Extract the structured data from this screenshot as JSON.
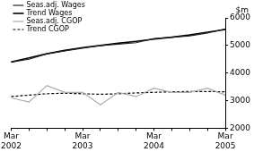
{
  "chart_data": {
    "type": "line",
    "ylabel": "$m",
    "categories": [
      "Mar 2002",
      null,
      null,
      null,
      "Mar 2003",
      null,
      null,
      null,
      "Mar 2004",
      null,
      null,
      null,
      "Mar 2005"
    ],
    "series": [
      {
        "name": "Seas.adj. Wages",
        "color": "#222222",
        "line_style": "solid",
        "values": [
          4400,
          4500,
          4700,
          4800,
          4900,
          5000,
          5050,
          5100,
          5250,
          5300,
          5350,
          5450,
          5600
        ]
      },
      {
        "name": "Trend Wages",
        "color": "#000000",
        "line_style": "solid",
        "values": [
          4400,
          4550,
          4700,
          4820,
          4920,
          5000,
          5080,
          5150,
          5230,
          5300,
          5380,
          5480,
          5580
        ]
      },
      {
        "name": "Seas.adj. CGOP",
        "color": "#aaaaaa",
        "line_style": "solid",
        "values": [
          3100,
          2950,
          3550,
          3300,
          3300,
          2850,
          3300,
          3150,
          3450,
          3300,
          3300,
          3450,
          3200
        ]
      },
      {
        "name": "Trend CGOP",
        "color": "#000000",
        "line_style": "dashed",
        "values": [
          3150,
          3200,
          3250,
          3270,
          3250,
          3230,
          3250,
          3280,
          3300,
          3320,
          3330,
          3330,
          3320
        ]
      }
    ],
    "ylim": [
      2000,
      6000
    ],
    "yticks": [
      2000,
      3000,
      4000,
      5000,
      6000
    ],
    "grid": false,
    "legend": "upper left"
  }
}
